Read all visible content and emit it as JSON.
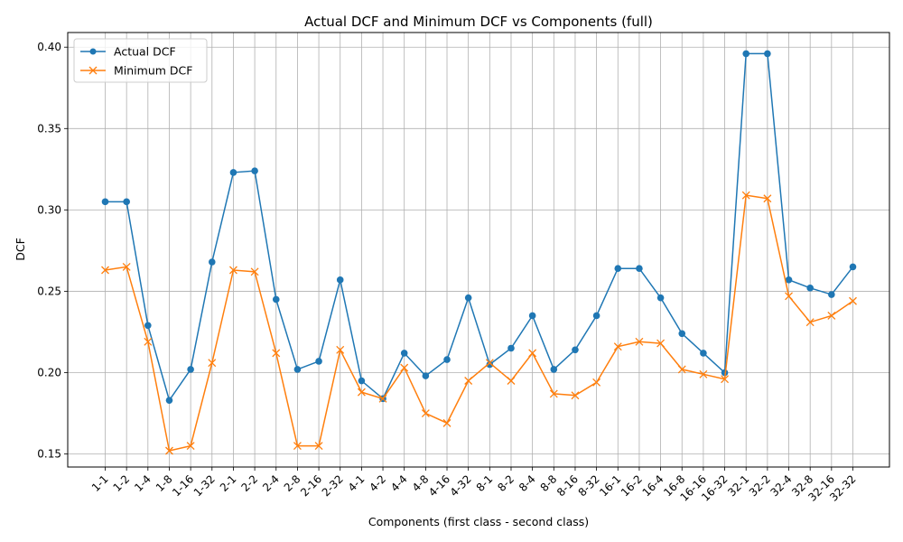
{
  "chart_data": {
    "type": "line",
    "title": "Actual DCF and Minimum DCF vs Components (full)",
    "xlabel": "Components (first class - second class)",
    "ylabel": "DCF",
    "ylim": [
      0.142,
      0.409
    ],
    "yticks": [
      "0.15",
      "0.20",
      "0.25",
      "0.30",
      "0.35",
      "0.40"
    ],
    "ytick_values": [
      0.15,
      0.2,
      0.25,
      0.3,
      0.35,
      0.4
    ],
    "grid": true,
    "legend_position": "top-left",
    "categories": [
      "1-1",
      "1-2",
      "1-4",
      "1-8",
      "1-16",
      "1-32",
      "2-1",
      "2-2",
      "2-4",
      "2-8",
      "2-16",
      "2-32",
      "4-1",
      "4-2",
      "4-4",
      "4-8",
      "4-16",
      "4-32",
      "8-1",
      "8-2",
      "8-4",
      "8-8",
      "8-16",
      "8-32",
      "16-1",
      "16-2",
      "16-4",
      "16-8",
      "16-16",
      "16-32",
      "32-1",
      "32-2",
      "32-4",
      "32-8",
      "32-16",
      "32-32"
    ],
    "series": [
      {
        "name": "Actual DCF",
        "marker": "circle",
        "color": "#1f77b4",
        "values": [
          0.305,
          0.305,
          0.229,
          0.183,
          0.202,
          0.268,
          0.323,
          0.324,
          0.245,
          0.202,
          0.207,
          0.257,
          0.195,
          0.184,
          0.212,
          0.198,
          0.208,
          0.246,
          0.205,
          0.215,
          0.235,
          0.202,
          0.214,
          0.235,
          0.264,
          0.264,
          0.246,
          0.224,
          0.212,
          0.2,
          0.396,
          0.396,
          0.257,
          0.252,
          0.248,
          0.265
        ]
      },
      {
        "name": "Minimum DCF",
        "marker": "x",
        "color": "#ff7f0e",
        "values": [
          0.263,
          0.265,
          0.219,
          0.152,
          0.155,
          0.206,
          0.263,
          0.262,
          0.212,
          0.155,
          0.155,
          0.214,
          0.188,
          0.184,
          0.203,
          0.175,
          0.169,
          0.195,
          0.206,
          0.195,
          0.212,
          0.187,
          0.186,
          0.194,
          0.216,
          0.219,
          0.218,
          0.202,
          0.199,
          0.196,
          0.309,
          0.307,
          0.247,
          0.231,
          0.235,
          0.244
        ]
      }
    ]
  }
}
